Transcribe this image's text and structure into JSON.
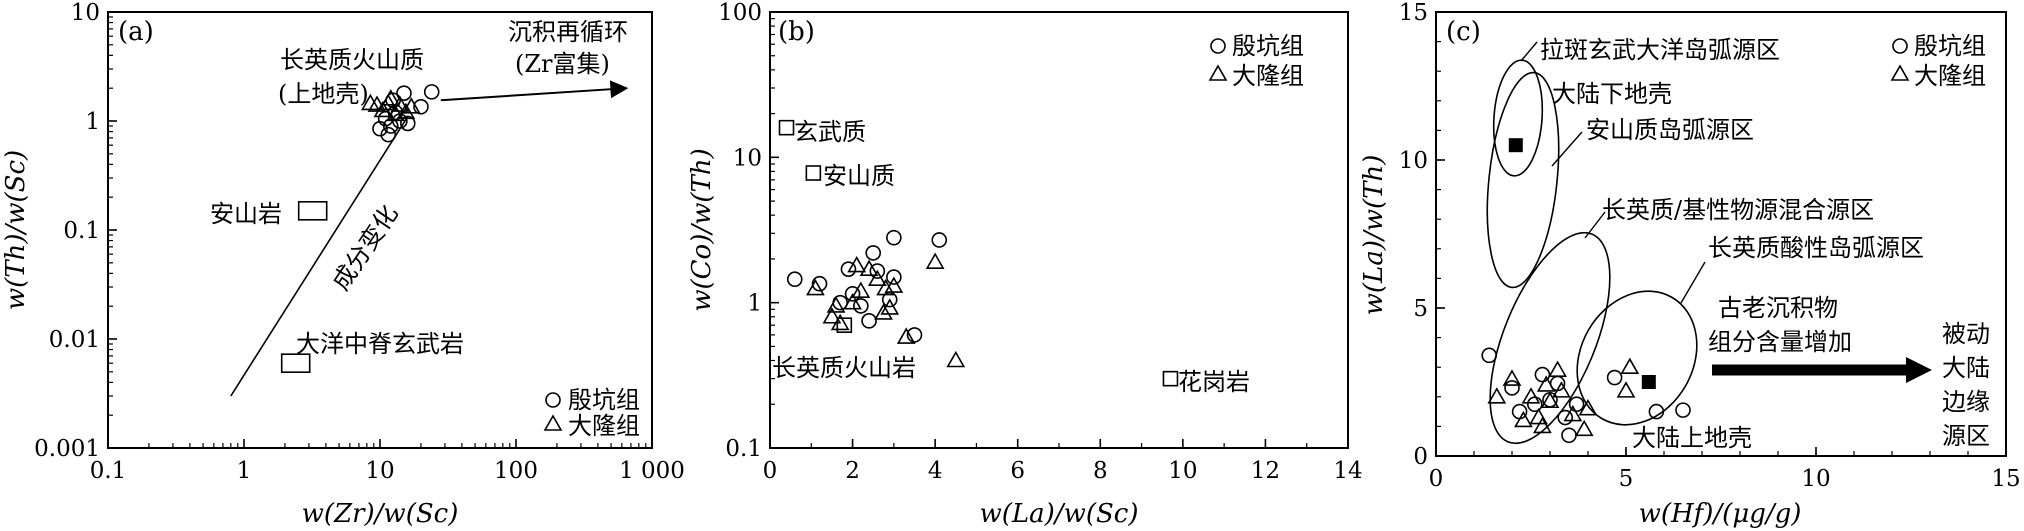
{
  "chart_data": [
    {
      "type": "scatter",
      "panel_label": "(a)",
      "xlabel": "w(Zr)/w(Sc)",
      "ylabel": "w(Th)/w(Sc)",
      "x_scale": "log",
      "y_scale": "log",
      "xlim": [
        0.1,
        1000
      ],
      "ylim": [
        0.001,
        10
      ],
      "x_ticks": [
        "0.1",
        "1",
        "10",
        "100",
        "1 000"
      ],
      "y_ticks": [
        "0.001",
        "0.01",
        "0.1",
        "1",
        "10"
      ],
      "legend": [
        "殷坑组",
        "大隆组"
      ],
      "legend_position": "bottom-right",
      "annotations": [
        "长英质火山质",
        "(上地壳)",
        "沉积再循环",
        "(Zr富集)",
        "成分变化",
        "安山岩",
        "大洋中脊玄武岩"
      ],
      "reference_points": [
        {
          "label": "安山岩",
          "x": 3.2,
          "y": 0.15
        },
        {
          "label": "大洋中脊玄武岩",
          "x": 2.4,
          "y": 0.006
        }
      ],
      "trend_line": {
        "from": [
          0.8,
          0.003
        ],
        "to": [
          16,
          1.1
        ]
      },
      "arrow": {
        "from": [
          28,
          1.55
        ],
        "to": [
          650,
          2.0
        ]
      },
      "series": [
        {
          "name": "殷坑组",
          "marker": "circle",
          "points": [
            [
              10,
              0.85
            ],
            [
              11,
              1.05
            ],
            [
              12,
              0.9
            ],
            [
              13,
              1.2
            ],
            [
              14,
              1.0
            ],
            [
              15,
              1.8
            ],
            [
              11.5,
              0.75
            ],
            [
              16,
              0.95
            ],
            [
              20,
              1.35
            ],
            [
              24,
              1.85
            ],
            [
              12.5,
              1.55
            ]
          ]
        },
        {
          "name": "大隆组",
          "marker": "triangle",
          "points": [
            [
              8.5,
              1.45
            ],
            [
              9.5,
              1.4
            ],
            [
              10.5,
              1.25
            ],
            [
              11.5,
              1.45
            ],
            [
              13,
              1.15
            ],
            [
              14,
              1.4
            ],
            [
              15.5,
              1.2
            ],
            [
              12,
              1.6
            ],
            [
              17,
              1.35
            ]
          ]
        }
      ]
    },
    {
      "type": "scatter",
      "panel_label": "(b)",
      "xlabel": "w(La)/w(Sc)",
      "ylabel": "w(Co)/w(Th)",
      "y_scale": "log",
      "xlim": [
        0,
        14
      ],
      "ylim": [
        0.1,
        100
      ],
      "x_ticks": [
        "0",
        "2",
        "4",
        "6",
        "8",
        "10",
        "12",
        "14"
      ],
      "y_ticks": [
        "0.1",
        "1",
        "10",
        "100"
      ],
      "legend": [
        "殷坑组",
        "大隆组"
      ],
      "legend_position": "top-right",
      "annotations": [
        "玄武质",
        "安山质",
        "长英质火山岩",
        "花岗岩"
      ],
      "reference_points": [
        {
          "label": "玄武质",
          "x": 0.4,
          "y": 16
        },
        {
          "label": "安山质",
          "x": 1.05,
          "y": 7.8
        },
        {
          "label": "长英质火山岩",
          "x": 1.8,
          "y": 0.7
        },
        {
          "label": "花岗岩",
          "x": 9.7,
          "y": 0.3
        }
      ],
      "series": [
        {
          "name": "殷坑组",
          "marker": "circle",
          "points": [
            [
              0.6,
              1.45
            ],
            [
              1.2,
              1.35
            ],
            [
              1.9,
              1.7
            ],
            [
              2.0,
              1.15
            ],
            [
              2.2,
              0.95
            ],
            [
              2.5,
              2.2
            ],
            [
              2.6,
              1.65
            ],
            [
              2.9,
              1.05
            ],
            [
              3.0,
              1.5
            ],
            [
              3.0,
              2.8
            ],
            [
              3.5,
              0.6
            ],
            [
              4.1,
              2.7
            ],
            [
              2.4,
              0.75
            ],
            [
              1.7,
              1.0
            ]
          ]
        },
        {
          "name": "大隆组",
          "marker": "triangle",
          "points": [
            [
              1.1,
              1.25
            ],
            [
              1.5,
              0.8
            ],
            [
              1.6,
              0.95
            ],
            [
              1.7,
              0.72
            ],
            [
              2.0,
              1.0
            ],
            [
              2.2,
              1.2
            ],
            [
              2.4,
              1.7
            ],
            [
              2.6,
              1.45
            ],
            [
              2.8,
              1.25
            ],
            [
              2.9,
              0.92
            ],
            [
              3.0,
              1.3
            ],
            [
              3.3,
              0.58
            ],
            [
              4.0,
              1.9
            ],
            [
              4.5,
              0.4
            ],
            [
              2.75,
              0.85
            ],
            [
              2.1,
              1.8
            ]
          ]
        }
      ]
    },
    {
      "type": "scatter",
      "panel_label": "(c)",
      "xlabel": "w(Hf)/(μg/g)",
      "ylabel": "w(La)/w(Th)",
      "xlim": [
        0,
        15
      ],
      "ylim": [
        0,
        15
      ],
      "x_ticks": [
        "0",
        "5",
        "10",
        "15"
      ],
      "y_ticks": [
        "0",
        "5",
        "10",
        "15"
      ],
      "legend": [
        "殷坑组",
        "大隆组"
      ],
      "legend_position": "top-right",
      "annotations": [
        "拉斑玄武大洋岛弧源区",
        "大陆下地壳",
        "安山质岛弧源区",
        "长英质/基性物源混合源区",
        "长英质酸性岛弧源区",
        "古老沉积物",
        "组分含量增加",
        "被动",
        "大陆",
        "边缘",
        "源区",
        "大陆上地壳"
      ],
      "reference_points": [
        {
          "label": "大陆下地壳",
          "x": 2.1,
          "y": 10.5
        },
        {
          "label": "大陆上地壳",
          "x": 5.6,
          "y": 2.5
        }
      ],
      "series": [
        {
          "name": "殷坑组",
          "marker": "circle",
          "points": [
            [
              1.4,
              3.4
            ],
            [
              2.0,
              2.3
            ],
            [
              2.2,
              1.5
            ],
            [
              2.6,
              1.75
            ],
            [
              2.8,
              2.75
            ],
            [
              3.0,
              1.9
            ],
            [
              3.2,
              2.45
            ],
            [
              3.4,
              1.3
            ],
            [
              3.5,
              0.7
            ],
            [
              3.7,
              1.75
            ],
            [
              4.7,
              2.65
            ],
            [
              5.8,
              1.5
            ],
            [
              6.5,
              1.55
            ]
          ]
        },
        {
          "name": "大隆组",
          "marker": "triangle",
          "points": [
            [
              1.6,
              2.0
            ],
            [
              2.0,
              2.6
            ],
            [
              2.3,
              1.2
            ],
            [
              2.5,
              2.0
            ],
            [
              2.7,
              1.3
            ],
            [
              2.9,
              2.4
            ],
            [
              3.0,
              1.85
            ],
            [
              3.2,
              2.9
            ],
            [
              3.3,
              2.2
            ],
            [
              3.6,
              1.4
            ],
            [
              3.9,
              0.9
            ],
            [
              4.0,
              1.6
            ],
            [
              5.0,
              2.2
            ],
            [
              5.1,
              3.0
            ],
            [
              2.8,
              1.0
            ]
          ]
        }
      ]
    }
  ]
}
